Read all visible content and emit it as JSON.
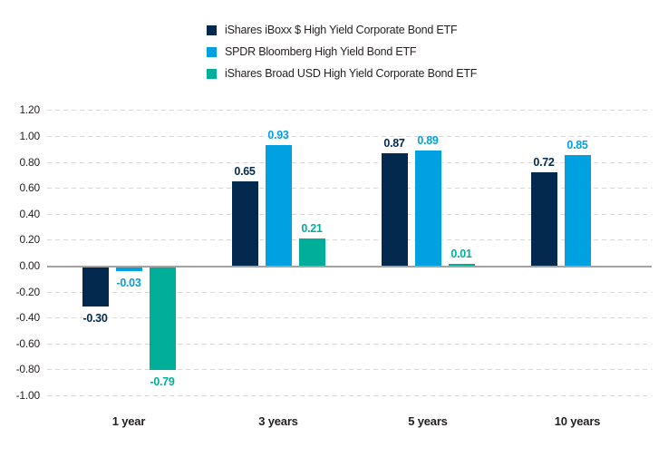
{
  "page": {
    "background": "#ffffff"
  },
  "colors": {
    "grid": "#d9d9d9",
    "zero_line": "#a3a3a3",
    "text": "#231f20"
  },
  "chart_data": {
    "type": "bar",
    "title": "",
    "xlabel": "",
    "ylabel": "",
    "categories": [
      "1 year",
      "3 years",
      "5 years",
      "10 years"
    ],
    "series": [
      {
        "name": "iShares iBoxx $ High Yield Corporate Bond ETF",
        "color": "#03294E",
        "values": [
          -0.3,
          0.65,
          0.87,
          0.72
        ],
        "labels": [
          "-0.30",
          "0.65",
          "0.87",
          "0.72"
        ]
      },
      {
        "name": "SPDR Bloomberg High Yield Bond ETF",
        "color": "#00A1E0",
        "values": [
          -0.03,
          0.93,
          0.89,
          0.85
        ],
        "labels": [
          "-0.03",
          "0.93",
          "0.89",
          "0.85"
        ]
      },
      {
        "name": "iShares Broad USD High Yield Corporate Bond ETF",
        "color": "#00AE99",
        "values": [
          -0.79,
          0.21,
          0.01,
          null
        ],
        "labels": [
          "-0.79",
          "0.21",
          "0.01",
          null
        ]
      }
    ],
    "ylim": [
      -1.0,
      1.2
    ],
    "ytick_step": 0.2,
    "y_ticks": [
      "1.20",
      "1.00",
      "0.80",
      "0.60",
      "0.40",
      "0.20",
      "0.00",
      "-0.20",
      "-0.40",
      "-0.60",
      "-0.80",
      "-1.00"
    ],
    "grid": "horizontal-dashed",
    "zero_line": true,
    "legend_position": "top-center",
    "value_labels": true
  }
}
